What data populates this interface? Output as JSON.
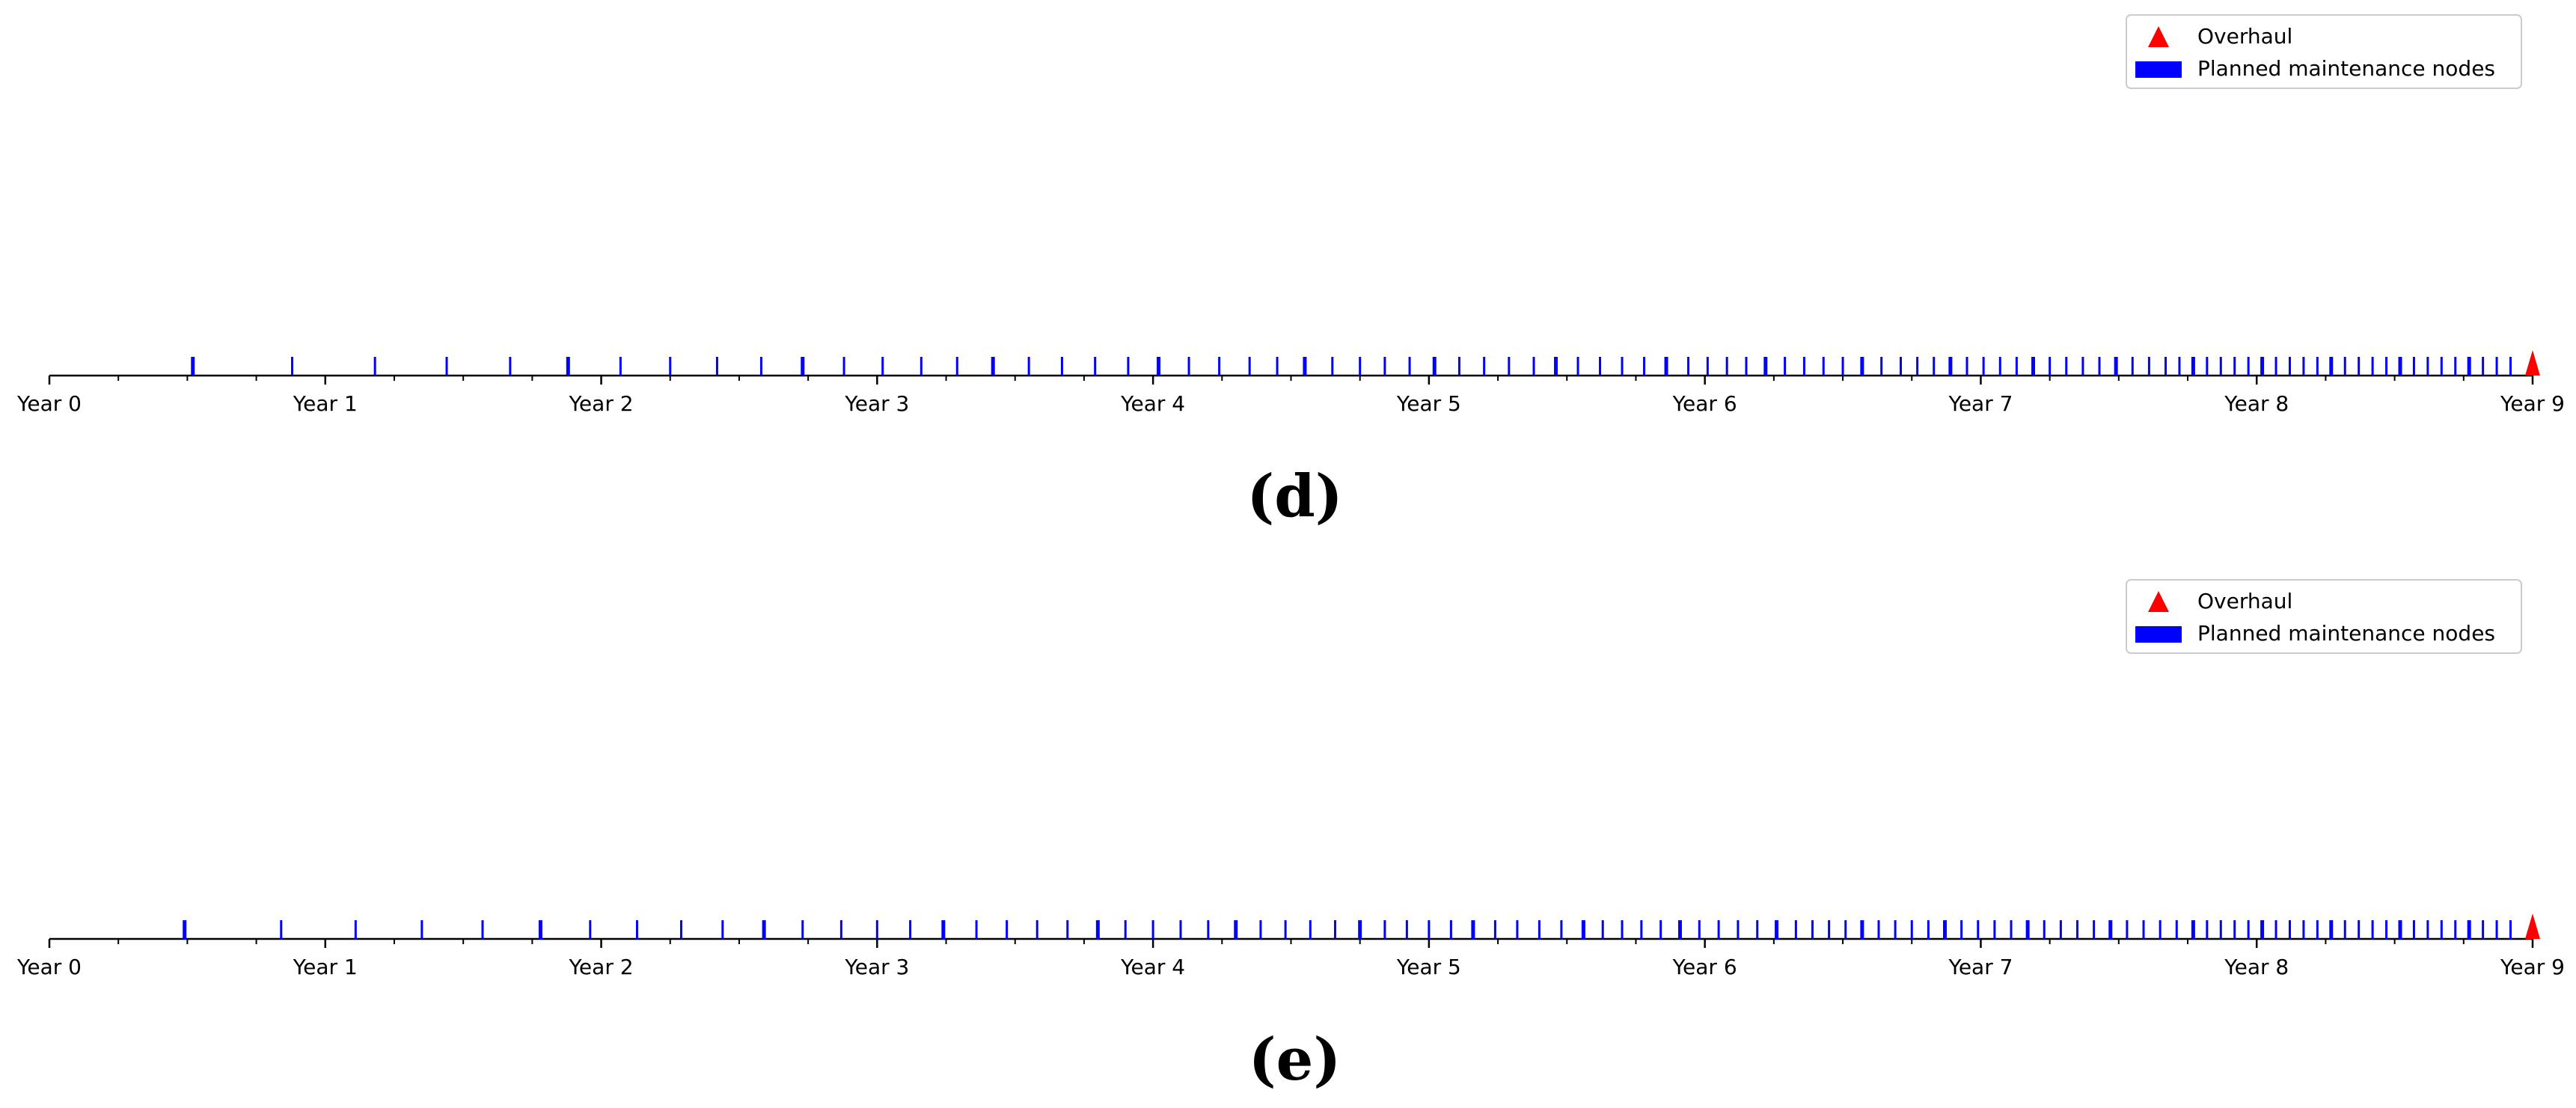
{
  "colors": {
    "node": "#0000ff",
    "overhaul": "#ff0000",
    "axis": "#000000",
    "legend_border": "#cccccc"
  },
  "chart_data": [
    {
      "type": "scatter",
      "panel_label": "(d)",
      "x_unit": "years",
      "xlim": [
        0,
        9
      ],
      "x_tick_labels": [
        "Year 0",
        "Year 1",
        "Year 2",
        "Year 3",
        "Year 4",
        "Year 5",
        "Year 6",
        "Year 7",
        "Year 8",
        "Year 9"
      ],
      "legend": {
        "position": "top-right",
        "entries": [
          "Overhaul",
          "Planned maintenance nodes"
        ]
      },
      "series": [
        {
          "name": "Planned maintenance nodes",
          "marker": "vertical-tick",
          "x": [
            0.52,
            0.88,
            1.18,
            1.44,
            1.67,
            1.88,
            2.07,
            2.25,
            2.42,
            2.58,
            2.73,
            2.88,
            3.02,
            3.16,
            3.29,
            3.42,
            3.55,
            3.67,
            3.79,
            3.91,
            4.02,
            4.13,
            4.24,
            4.35,
            4.45,
            4.55,
            4.65,
            4.75,
            4.84,
            4.93,
            5.02,
            5.11,
            5.2,
            5.29,
            5.38,
            5.46,
            5.54,
            5.62,
            5.7,
            5.78,
            5.86,
            5.94,
            6.01,
            6.08,
            6.15,
            6.22,
            6.29,
            6.36,
            6.43,
            6.5,
            6.57,
            6.64,
            6.71,
            6.77,
            6.83,
            6.89,
            6.95,
            7.01,
            7.07,
            7.13,
            7.19,
            7.25,
            7.31,
            7.37,
            7.43,
            7.49,
            7.55,
            7.61,
            7.67,
            7.72,
            7.77,
            7.82,
            7.87,
            7.92,
            7.97,
            8.02,
            8.07,
            8.12,
            8.17,
            8.22,
            8.27,
            8.32,
            8.37,
            8.42,
            8.47,
            8.52,
            8.57,
            8.62,
            8.67,
            8.72,
            8.77,
            8.82,
            8.87,
            8.92
          ]
        },
        {
          "name": "Overhaul",
          "marker": "triangle",
          "x": [
            9
          ]
        }
      ]
    },
    {
      "type": "scatter",
      "panel_label": "(e)",
      "x_unit": "years",
      "xlim": [
        0,
        9
      ],
      "x_tick_labels": [
        "Year 0",
        "Year 1",
        "Year 2",
        "Year 3",
        "Year 4",
        "Year 5",
        "Year 6",
        "Year 7",
        "Year 8",
        "Year 9"
      ],
      "legend": {
        "position": "top-right",
        "entries": [
          "Overhaul",
          "Planned maintenance nodes"
        ]
      },
      "series": [
        {
          "name": "Planned maintenance nodes",
          "marker": "vertical-tick",
          "x": [
            0.49,
            0.84,
            1.11,
            1.35,
            1.57,
            1.78,
            1.96,
            2.13,
            2.29,
            2.44,
            2.59,
            2.73,
            2.87,
            3.0,
            3.12,
            3.24,
            3.36,
            3.47,
            3.58,
            3.69,
            3.8,
            3.9,
            4.0,
            4.1,
            4.2,
            4.3,
            4.39,
            4.48,
            4.57,
            4.66,
            4.75,
            4.84,
            4.92,
            5.0,
            5.08,
            5.16,
            5.24,
            5.32,
            5.4,
            5.48,
            5.56,
            5.63,
            5.7,
            5.77,
            5.84,
            5.91,
            5.98,
            6.05,
            6.12,
            6.19,
            6.26,
            6.33,
            6.39,
            6.45,
            6.51,
            6.57,
            6.63,
            6.69,
            6.75,
            6.81,
            6.87,
            6.93,
            6.99,
            7.05,
            7.11,
            7.17,
            7.23,
            7.29,
            7.35,
            7.41,
            7.47,
            7.53,
            7.59,
            7.65,
            7.71,
            7.77,
            7.82,
            7.87,
            7.92,
            7.97,
            8.02,
            8.07,
            8.12,
            8.17,
            8.22,
            8.27,
            8.32,
            8.37,
            8.42,
            8.47,
            8.52,
            8.57,
            8.62,
            8.67,
            8.72,
            8.77,
            8.82,
            8.87,
            8.92
          ]
        },
        {
          "name": "Overhaul",
          "marker": "triangle",
          "x": [
            9
          ]
        }
      ]
    }
  ]
}
